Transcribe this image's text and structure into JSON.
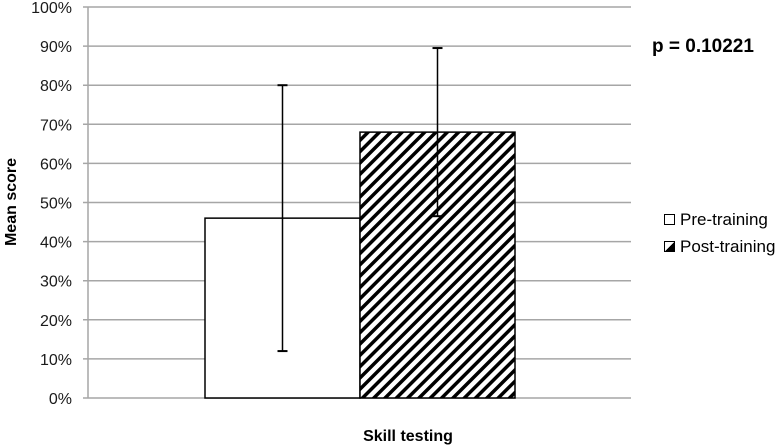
{
  "chart_data": {
    "type": "bar",
    "title": "",
    "xlabel": "Skill testing",
    "ylabel": "Mean score",
    "ylim": [
      0,
      100
    ],
    "yticks": [
      "0%",
      "10%",
      "20%",
      "30%",
      "40%",
      "50%",
      "60%",
      "70%",
      "80%",
      "90%",
      "100%"
    ],
    "grid": true,
    "legend_position": "right",
    "categories": [
      "Skill testing"
    ],
    "series": [
      {
        "name": "Pre-training",
        "values": [
          46
        ],
        "error_low": [
          12
        ],
        "error_high": [
          80
        ],
        "fill": "white"
      },
      {
        "name": "Post-training",
        "values": [
          68
        ],
        "error_low": [
          46.5
        ],
        "error_high": [
          89.5
        ],
        "fill": "diagonal-hatch"
      }
    ],
    "annotations": [
      "p = 0.10221"
    ]
  },
  "annotation": {
    "pvalue": "p = 0.10221"
  },
  "legend": {
    "items": [
      {
        "label": "Pre-training"
      },
      {
        "label": "Post-training"
      }
    ]
  },
  "axis": {
    "ylabel": "Mean score",
    "xlabel": "Skill testing"
  },
  "colors": {
    "grid": "#a6a6a6",
    "bar_edge": "#000000",
    "background": "#ffffff"
  }
}
